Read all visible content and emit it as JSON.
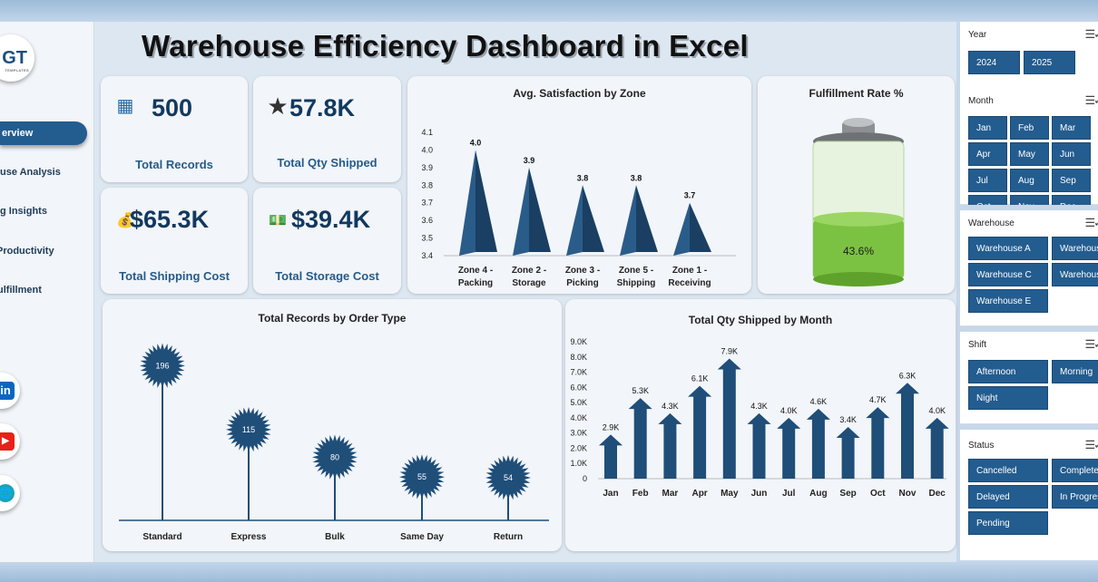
{
  "title": "Warehouse Efficiency Dashboard in Excel",
  "logo": {
    "text": "GT",
    "sub": "TEMPLATES"
  },
  "nav": [
    {
      "label": "Overview",
      "text": "erview"
    },
    {
      "label": "Warehouse Analysis",
      "text": "use Analysis"
    },
    {
      "label": "Shipping Insights",
      "text": "g Insights"
    },
    {
      "label": "Productivity",
      "text": "Productivity"
    },
    {
      "label": "Fulfillment",
      "text": "ulfillment"
    }
  ],
  "social": [
    {
      "icon": "linkedin-icon",
      "glyph": "in",
      "color": "#0a66c2"
    },
    {
      "icon": "youtube-icon",
      "glyph": "▶",
      "color": "#e62117"
    },
    {
      "icon": "globe-icon",
      "glyph": "🌐",
      "color": "#1aa3b8"
    }
  ],
  "kpis": [
    {
      "value": "500",
      "label": "Total Records",
      "icon": "pallet-boxes-icon",
      "glyph": "▦"
    },
    {
      "value": "57.8K",
      "label": "Total Qty Shipped",
      "icon": "star-icon",
      "glyph": "★"
    },
    {
      "value": "$65.3K",
      "label": "Total Shipping Cost",
      "icon": "money-icon",
      "glyph": "💰"
    },
    {
      "value": "$39.4K",
      "label": "Total Storage Cost",
      "icon": "cash-icon",
      "glyph": "💵"
    }
  ],
  "chart_data": [
    {
      "type": "bar",
      "title": "Avg. Satisfaction by Zone",
      "categories": [
        "Zone 4 - Packing",
        "Zone 2 - Storage",
        "Zone 3 - Picking",
        "Zone 5 - Shipping",
        "Zone 1 - Receiving"
      ],
      "category_lines": [
        [
          "Zone 4 -",
          "Packing"
        ],
        [
          "Zone 2 -",
          "Storage"
        ],
        [
          "Zone 3 -",
          "Picking"
        ],
        [
          "Zone 5 -",
          "Shipping"
        ],
        [
          "Zone 1 -",
          "Receiving"
        ]
      ],
      "values": [
        4.0,
        3.9,
        3.8,
        3.8,
        3.7
      ],
      "labels": [
        "4.0",
        "3.9",
        "3.8",
        "3.8",
        "3.7"
      ],
      "ylim": [
        3.4,
        4.1
      ],
      "yticks": [
        "3.4",
        "3.5",
        "3.6",
        "3.7",
        "3.8",
        "3.9",
        "4.0",
        "4.1"
      ],
      "color": "#1f4e79"
    },
    {
      "type": "gauge",
      "title": "Fulfillment Rate %",
      "value": 43.6,
      "label": "43.6%",
      "color": "#7cc242"
    },
    {
      "type": "bar",
      "title": "Total Records by Order Type",
      "categories": [
        "Standard",
        "Express",
        "Bulk",
        "Same Day",
        "Return"
      ],
      "values": [
        196,
        115,
        80,
        55,
        54
      ],
      "color": "#1f4e79"
    },
    {
      "type": "bar",
      "title": "Total Qty Shipped by Month",
      "categories": [
        "Jan",
        "Feb",
        "Mar",
        "Apr",
        "May",
        "Jun",
        "Jul",
        "Aug",
        "Sep",
        "Oct",
        "Nov",
        "Dec"
      ],
      "values": [
        2.9,
        5.3,
        4.3,
        6.1,
        7.9,
        4.3,
        4.0,
        4.6,
        3.4,
        4.7,
        6.3,
        4.0
      ],
      "labels": [
        "2.9K",
        "5.3K",
        "4.3K",
        "6.1K",
        "7.9K",
        "4.3K",
        "4.0K",
        "4.6K",
        "3.4K",
        "4.7K",
        "6.3K",
        "4.0K"
      ],
      "ylim": [
        0,
        9
      ],
      "yticks": [
        "0",
        "1.0K",
        "2.0K",
        "3.0K",
        "4.0K",
        "5.0K",
        "6.0K",
        "7.0K",
        "8.0K",
        "9.0K"
      ],
      "ylabel": "",
      "color": "#1f4e79"
    }
  ],
  "slicers": [
    {
      "title": "Year",
      "items": [
        "2024",
        "2025"
      ]
    },
    {
      "title": "Month",
      "items": [
        "Jan",
        "Feb",
        "Mar",
        "Apr",
        "May",
        "Jun",
        "Jul",
        "Aug",
        "Sep",
        "Oct",
        "Nov",
        "Dec"
      ]
    },
    {
      "title": "Warehouse",
      "items": [
        "Warehouse A",
        "Warehouse B",
        "Warehouse C",
        "Warehouse D",
        "Warehouse E"
      ]
    },
    {
      "title": "Shift",
      "items": [
        "Afternoon",
        "Morning",
        "Night"
      ]
    },
    {
      "title": "Status",
      "items": [
        "Cancelled",
        "Completed",
        "Delayed",
        "In Progress",
        "Pending"
      ]
    }
  ],
  "slicer_icon": "multi-select-icon",
  "colors": {
    "accent": "#235c8f",
    "dark": "#1f4e79",
    "green": "#7cc242",
    "background": "#dde7f1"
  }
}
